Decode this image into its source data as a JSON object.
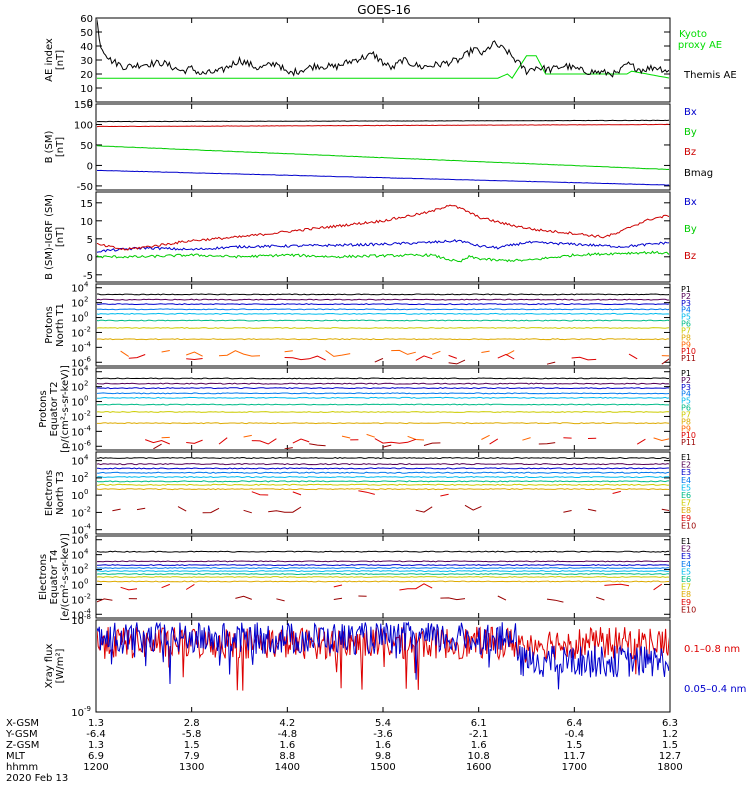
{
  "title": "GOES-16",
  "footer": {
    "rows": [
      {
        "label": "X-GSM",
        "values": [
          "1.3",
          "2.8",
          "4.2",
          "5.4",
          "6.1",
          "6.4",
          "6.3"
        ]
      },
      {
        "label": "Y-GSM",
        "values": [
          "-6.4",
          "-5.8",
          "-4.8",
          "-3.6",
          "-2.1",
          "-0.4",
          "1.2"
        ]
      },
      {
        "label": "Z-GSM",
        "values": [
          "1.3",
          "1.5",
          "1.6",
          "1.6",
          "1.6",
          "1.5",
          "1.5"
        ]
      },
      {
        "label": "MLT",
        "values": [
          "6.9",
          "7.9",
          "8.8",
          "9.8",
          "10.8",
          "11.7",
          "12.7"
        ]
      },
      {
        "label": "hhmm",
        "values": [
          "1200",
          "1300",
          "1400",
          "1500",
          "1600",
          "1700",
          "1800"
        ]
      }
    ],
    "date": "2020 Feb 13"
  },
  "chart_data": [
    {
      "type": "line",
      "ylabel": [
        "AE index",
        "[nT]"
      ],
      "ylim": [
        0,
        60
      ],
      "yticks": [
        "0",
        "10",
        "20",
        "30",
        "40",
        "50",
        "60"
      ],
      "x_range_hhmm": [
        "1200",
        "1800"
      ],
      "series": [
        {
          "name": "Kyoto proxy AE",
          "color": "#00dd00",
          "x": [
            0,
            4.2,
            4.3,
            4.35,
            4.5,
            4.6,
            4.7,
            5.55,
            5.6,
            6.0
          ],
          "values": [
            17,
            17,
            20,
            17,
            33,
            33,
            20,
            20,
            22,
            17
          ]
        },
        {
          "name": "Themis AE",
          "color": "#000000",
          "x": [
            0,
            0.05,
            0.15,
            0.3,
            0.5,
            0.7,
            0.9,
            1.0,
            1.1,
            1.3,
            1.5,
            1.7,
            1.9,
            2.0,
            2.1,
            2.3,
            2.5,
            2.7,
            2.9,
            3.0,
            3.1,
            3.2,
            3.4,
            3.6,
            3.8,
            3.95,
            4.05,
            4.15,
            4.3,
            4.5,
            4.6,
            4.75,
            4.9,
            5.1,
            5.3,
            5.45,
            5.55,
            5.7,
            5.85,
            6.0
          ],
          "values": [
            62,
            40,
            30,
            25,
            27,
            28,
            22,
            24,
            20,
            22,
            30,
            24,
            28,
            20,
            22,
            26,
            25,
            30,
            34,
            28,
            24,
            30,
            25,
            27,
            30,
            38,
            34,
            42,
            36,
            22,
            25,
            23,
            26,
            22,
            21,
            20,
            27,
            23,
            25,
            22
          ]
        }
      ]
    },
    {
      "type": "line",
      "ylabel": [
        "B (SM)",
        "[nT]"
      ],
      "ylim": [
        -60,
        150
      ],
      "yticks": [
        "-50",
        "0",
        "50",
        "100",
        "150"
      ],
      "series": [
        {
          "name": "Bx",
          "color": "#0000cc",
          "x": [
            0,
            6
          ],
          "values": [
            -12,
            -48
          ]
        },
        {
          "name": "By",
          "color": "#00cc00",
          "x": [
            0,
            6
          ],
          "values": [
            48,
            -10
          ]
        },
        {
          "name": "Bz",
          "color": "#cc0000",
          "x": [
            0,
            6
          ],
          "values": [
            95,
            100
          ]
        },
        {
          "name": "Bmag",
          "color": "#000000",
          "x": [
            0,
            6
          ],
          "values": [
            107,
            110
          ]
        }
      ]
    },
    {
      "type": "line",
      "ylabel": [
        "B (SM)-IGRF (SM)",
        "[nT]"
      ],
      "ylim": [
        -7,
        18
      ],
      "yticks": [
        "-5",
        "0",
        "5",
        "10",
        "15"
      ],
      "series": [
        {
          "name": "Bx",
          "color": "#0000cc",
          "x": [
            0,
            0.5,
            1.0,
            1.5,
            2.0,
            2.5,
            3.0,
            3.5,
            3.8,
            4.0,
            4.2,
            4.5,
            5.0,
            5.5,
            5.8,
            6.0
          ],
          "values": [
            1.5,
            2.5,
            2.0,
            2.8,
            3.0,
            3.2,
            3.5,
            4.0,
            4.5,
            3.0,
            2.5,
            4.0,
            3.5,
            2.8,
            3.5,
            4.0
          ]
        },
        {
          "name": "By",
          "color": "#00cc00",
          "x": [
            0,
            0.5,
            1.0,
            1.5,
            2.0,
            2.5,
            3.0,
            3.5,
            3.8,
            3.9,
            4.0,
            4.2,
            4.5,
            5.0,
            5.5,
            5.8,
            6.0
          ],
          "values": [
            0,
            0,
            0.5,
            0,
            0.5,
            0,
            0.3,
            0.5,
            -1.5,
            0,
            -0.5,
            -1.0,
            -1.0,
            0.5,
            1.0,
            1.2,
            1.0
          ]
        },
        {
          "name": "Bz",
          "color": "#cc0000",
          "x": [
            0,
            0.3,
            0.6,
            1.0,
            1.5,
            2.0,
            2.5,
            3.0,
            3.5,
            3.7,
            3.85,
            4.0,
            4.3,
            4.6,
            5.0,
            5.3,
            5.45,
            5.6,
            5.8,
            6.0
          ],
          "values": [
            3.5,
            2.0,
            3.0,
            4.5,
            5.5,
            7.0,
            8.5,
            10.0,
            12.5,
            14.5,
            13.0,
            11.0,
            9.0,
            7.5,
            6.5,
            5.5,
            6.5,
            8.5,
            10.5,
            11.5
          ]
        }
      ]
    },
    {
      "type": "line",
      "ylog": true,
      "ylabel": [
        "Protons",
        "North T1"
      ],
      "ylim_exp": [
        -6.5,
        4.5
      ],
      "ytick_exponents": [
        4,
        2,
        0,
        -2,
        -4,
        -6
      ],
      "legend": [
        "P1",
        "P2",
        "P3",
        "P4",
        "P5",
        "P6",
        "P7",
        "P8",
        "P9",
        "P10",
        "P11"
      ],
      "legend_colors": [
        "#000000",
        "#550055",
        "#0000cc",
        "#0077ee",
        "#00bbee",
        "#00bb88",
        "#cccc00",
        "#ddaa00",
        "#ff6600",
        "#dd0000",
        "#990000"
      ],
      "levels_exp": [
        3.1,
        2.4,
        1.8,
        1.1,
        0.5,
        -0.4,
        -1.4,
        -2.9,
        -4.8,
        -5.3,
        -5.9
      ]
    },
    {
      "type": "line",
      "ylog": true,
      "ylabel": [
        "Protons",
        "Equator T2",
        "[p/(cm²-s-sr-keV)]"
      ],
      "ylim_exp": [
        -6.5,
        4.5
      ],
      "ytick_exponents": [
        4,
        2,
        0,
        -2,
        -4,
        -6
      ],
      "legend": [
        "P1",
        "P2",
        "P3",
        "P4",
        "P5",
        "P6",
        "P7",
        "P8",
        "P9",
        "P10",
        "P11"
      ],
      "legend_colors": [
        "#000000",
        "#550055",
        "#0000cc",
        "#0077ee",
        "#00bbee",
        "#00bb88",
        "#cccc00",
        "#ddaa00",
        "#ff6600",
        "#dd0000",
        "#990000"
      ],
      "levels_exp": [
        3.1,
        2.4,
        1.8,
        1.1,
        0.5,
        -0.4,
        -1.4,
        -2.9,
        -4.8,
        -5.3,
        -5.9
      ]
    },
    {
      "type": "line",
      "ylog": true,
      "ylabel": [
        "Electrons",
        "North T3"
      ],
      "ylim_exp": [
        -4.5,
        5
      ],
      "ytick_exponents": [
        4,
        2,
        0,
        -2,
        -4
      ],
      "legend": [
        "E1",
        "E2",
        "E3",
        "E4",
        "E5",
        "E6",
        "E7",
        "E8",
        "E9",
        "E10"
      ],
      "legend_colors": [
        "#000000",
        "#550055",
        "#0000cc",
        "#0077ee",
        "#00bbee",
        "#00bb88",
        "#cccc00",
        "#ddaa00",
        "#dd0000",
        "#990000"
      ],
      "levels_exp": [
        4.3,
        3.6,
        3.1,
        2.6,
        2.1,
        1.6,
        1.2,
        0.7,
        0.2,
        -1.6
      ]
    },
    {
      "type": "line",
      "ylog": true,
      "ylabel": [
        "Electrons",
        "Equator T4",
        "[e/(cm²-s-sr-keV)]"
      ],
      "ylim_exp": [
        -4.5,
        6.5
      ],
      "ytick_exponents": [
        6,
        4,
        2,
        0,
        -2,
        -4
      ],
      "legend": [
        "E1",
        "E2",
        "E3",
        "E4",
        "E5",
        "E6",
        "E7",
        "E8",
        "E9",
        "E10"
      ],
      "legend_colors": [
        "#000000",
        "#550055",
        "#0000cc",
        "#0077ee",
        "#00bbee",
        "#00bb88",
        "#cccc00",
        "#ddaa00",
        "#dd0000",
        "#990000"
      ],
      "levels_exp": [
        4.4,
        3.1,
        2.6,
        2.2,
        1.8,
        1.4,
        1.0,
        0.4,
        -0.3,
        -2.0
      ]
    },
    {
      "type": "line",
      "ylog": true,
      "ylabel": [
        "Xray flux",
        "[W/m²]"
      ],
      "ylim_exp": [
        -9,
        -8
      ],
      "ytick_exponents": [
        -8,
        -9
      ],
      "legend": [
        "0.1–0.8 nm",
        "0.05–0.4 nm"
      ],
      "legend_colors": [
        "#dd0000",
        "#0000cc"
      ],
      "levels_exp": [
        -8.25,
        -8.2
      ]
    }
  ]
}
